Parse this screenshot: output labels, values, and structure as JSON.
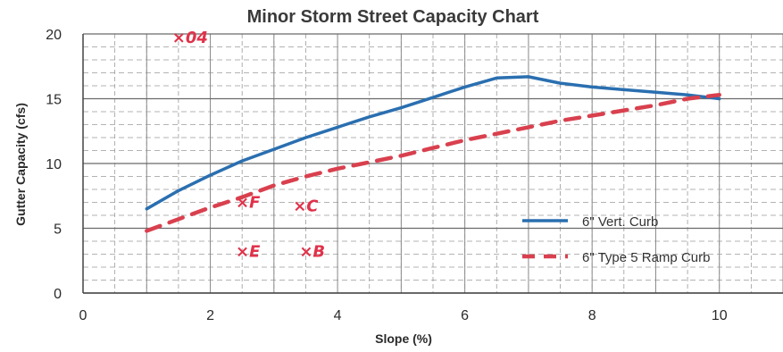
{
  "chart_data": {
    "type": "line",
    "title": "Minor Storm Street Capacity Chart",
    "xlabel": "Slope (%)",
    "ylabel": "Gutter Capacity (cfs)",
    "xlim": [
      0,
      11
    ],
    "ylim": [
      0,
      20
    ],
    "xticks": [
      0,
      2,
      4,
      6,
      8,
      10
    ],
    "yticks": [
      0,
      5,
      10,
      15,
      20
    ],
    "grid": true,
    "legend_position": "right",
    "series": [
      {
        "name": "6\" Vert. Curb",
        "style": "solid",
        "color": "#2a6fb0",
        "x": [
          1.0,
          1.5,
          2.0,
          2.5,
          3.0,
          3.5,
          4.0,
          4.5,
          5.0,
          5.5,
          6.0,
          6.5,
          7.0,
          7.5,
          8.0,
          8.5,
          9.0,
          9.5,
          10.0
        ],
        "y": [
          6.5,
          7.9,
          9.1,
          10.2,
          11.1,
          12.0,
          12.8,
          13.6,
          14.3,
          15.1,
          15.9,
          16.6,
          16.7,
          16.2,
          15.9,
          15.7,
          15.5,
          15.3,
          15.0
        ]
      },
      {
        "name": "6\" Type 5 Ramp Curb",
        "style": "dashed",
        "color": "#d9404e",
        "x": [
          1.0,
          1.5,
          2.0,
          2.5,
          3.0,
          3.5,
          4.0,
          4.5,
          5.0,
          5.5,
          6.0,
          6.5,
          7.0,
          7.5,
          8.0,
          8.5,
          9.0,
          9.5,
          10.0
        ],
        "y": [
          4.8,
          5.7,
          6.6,
          7.4,
          8.3,
          9.0,
          9.6,
          10.1,
          10.6,
          11.2,
          11.8,
          12.3,
          12.8,
          13.3,
          13.7,
          14.1,
          14.5,
          15.0,
          15.3
        ]
      }
    ],
    "annotations": [
      {
        "text": "×04",
        "x": 1.4,
        "y": 19.3
      },
      {
        "text": "×F",
        "x": 2.4,
        "y": 6.6
      },
      {
        "text": "×C",
        "x": 3.3,
        "y": 6.3
      },
      {
        "text": "×E",
        "x": 2.4,
        "y": 2.8
      },
      {
        "text": "×B",
        "x": 3.4,
        "y": 2.8
      }
    ]
  }
}
